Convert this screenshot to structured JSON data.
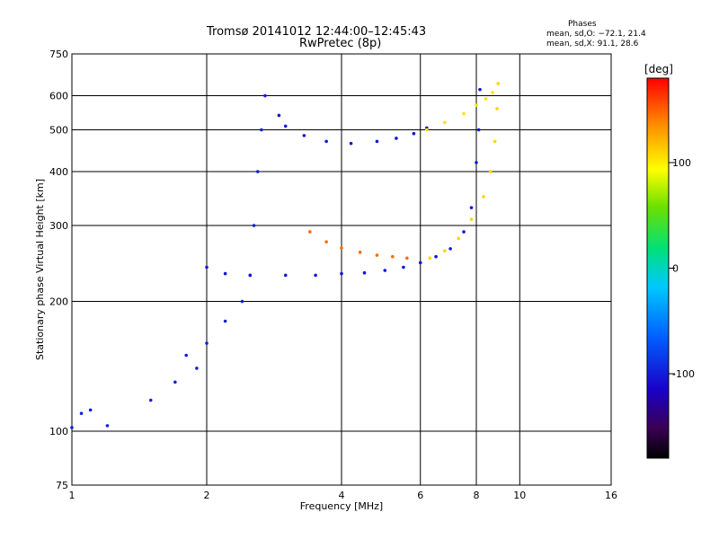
{
  "header": {
    "title_line1": "Tromsø 20141012 12:44:00–12:45:43",
    "title_line2": "RwPretec (8p)"
  },
  "stats": {
    "title": "Phases",
    "line_o": "mean, sd,O: −72.1, 21.4",
    "line_x": "mean, sd,X:  91.1, 28.6"
  },
  "chart_data": {
    "type": "scatter",
    "xlabel": "Frequency [MHz]",
    "ylabel": "Stationary phase Virtual Height [km]",
    "xscale": "log",
    "yscale": "log",
    "xlim": [
      1,
      16
    ],
    "ylim": [
      75,
      750
    ],
    "x_ticks": [
      1,
      2,
      4,
      6,
      8,
      10,
      16
    ],
    "y_ticks": [
      75,
      100,
      200,
      300,
      400,
      500,
      600,
      750
    ],
    "grid": true,
    "colorbar": {
      "label": "[deg]",
      "range": [
        -180,
        180
      ],
      "ticks": [
        100,
        0,
        -100
      ]
    },
    "traces": [
      {
        "name": "",
        "phase": -105,
        "points": [
          [
            1.0,
            102
          ],
          [
            1.05,
            110
          ],
          [
            1.1,
            112
          ],
          [
            1.2,
            103
          ],
          [
            1.5,
            118
          ],
          [
            1.7,
            130
          ],
          [
            1.8,
            150
          ],
          [
            1.9,
            140
          ],
          [
            2.0,
            160
          ],
          [
            2.2,
            180
          ],
          [
            2.4,
            200
          ],
          [
            2.5,
            230
          ],
          [
            2.55,
            300
          ],
          [
            2.6,
            400
          ],
          [
            2.65,
            500
          ],
          [
            2.7,
            600
          ]
        ]
      },
      {
        "name": "",
        "phase": -110,
        "points": [
          [
            2.0,
            240
          ],
          [
            2.2,
            232
          ],
          [
            2.5,
            230
          ],
          [
            3.0,
            230
          ],
          [
            3.5,
            230
          ],
          [
            4.0,
            232
          ],
          [
            4.5,
            233
          ],
          [
            5.0,
            236
          ],
          [
            5.5,
            240
          ],
          [
            6.0,
            246
          ],
          [
            6.5,
            254
          ],
          [
            7.0,
            265
          ],
          [
            7.5,
            290
          ],
          [
            7.8,
            330
          ],
          [
            8.0,
            420
          ],
          [
            8.1,
            500
          ],
          [
            8.15,
            620
          ]
        ]
      },
      {
        "name": "",
        "phase": -110,
        "points": [
          [
            2.9,
            540
          ],
          [
            3.0,
            510
          ],
          [
            3.3,
            485
          ],
          [
            3.7,
            470
          ],
          [
            4.2,
            465
          ],
          [
            4.8,
            470
          ],
          [
            5.3,
            478
          ],
          [
            5.8,
            490
          ],
          [
            6.2,
            505
          ]
        ]
      },
      {
        "name": "",
        "phase": 145,
        "points": [
          [
            3.4,
            290
          ],
          [
            3.7,
            275
          ],
          [
            4.0,
            266
          ],
          [
            4.4,
            260
          ],
          [
            4.8,
            256
          ],
          [
            5.2,
            254
          ],
          [
            5.6,
            252
          ]
        ]
      },
      {
        "name": "",
        "phase": 110,
        "points": [
          [
            6.3,
            252
          ],
          [
            6.8,
            262
          ],
          [
            7.3,
            280
          ],
          [
            7.8,
            310
          ],
          [
            8.3,
            350
          ],
          [
            8.6,
            400
          ],
          [
            8.8,
            470
          ],
          [
            8.9,
            560
          ],
          [
            8.95,
            640
          ]
        ]
      },
      {
        "name": "",
        "phase": 105,
        "points": [
          [
            6.2,
            500
          ],
          [
            6.8,
            520
          ],
          [
            7.5,
            545
          ],
          [
            8.0,
            570
          ],
          [
            8.4,
            590
          ],
          [
            8.7,
            610
          ]
        ]
      }
    ]
  }
}
